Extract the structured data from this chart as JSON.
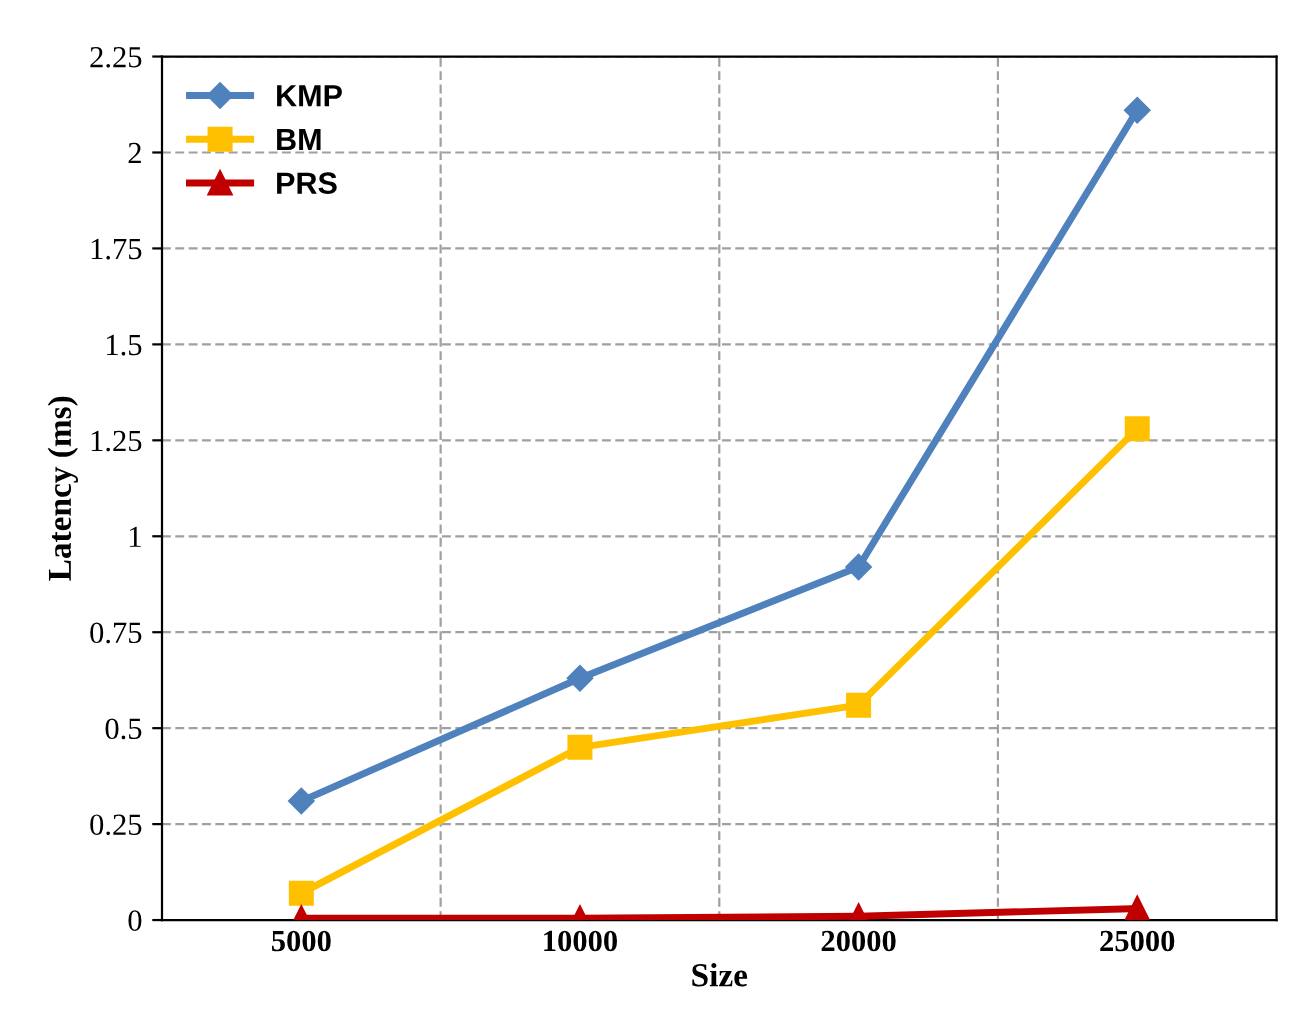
{
  "chart_data": {
    "type": "line",
    "xlabel": "Size",
    "ylabel": "Latency (ms)",
    "categories": [
      "5000",
      "10000",
      "20000",
      "25000"
    ],
    "series": [
      {
        "name": "KMP",
        "color": "#4f81bd",
        "marker": "diamond",
        "values": [
          0.31,
          0.63,
          0.92,
          2.11
        ]
      },
      {
        "name": "BM",
        "color": "#ffc000",
        "marker": "square",
        "values": [
          0.07,
          0.45,
          0.56,
          1.28
        ]
      },
      {
        "name": "PRS",
        "color": "#c00000",
        "marker": "triangle",
        "values": [
          0.005,
          0.005,
          0.01,
          0.03
        ]
      }
    ],
    "ylim": [
      0,
      2.25
    ],
    "yticks": [
      0,
      0.25,
      0.5,
      0.75,
      1,
      1.25,
      1.5,
      1.75,
      2,
      2.25
    ],
    "grid": true,
    "legend": "top left",
    "line_style": "solid"
  }
}
